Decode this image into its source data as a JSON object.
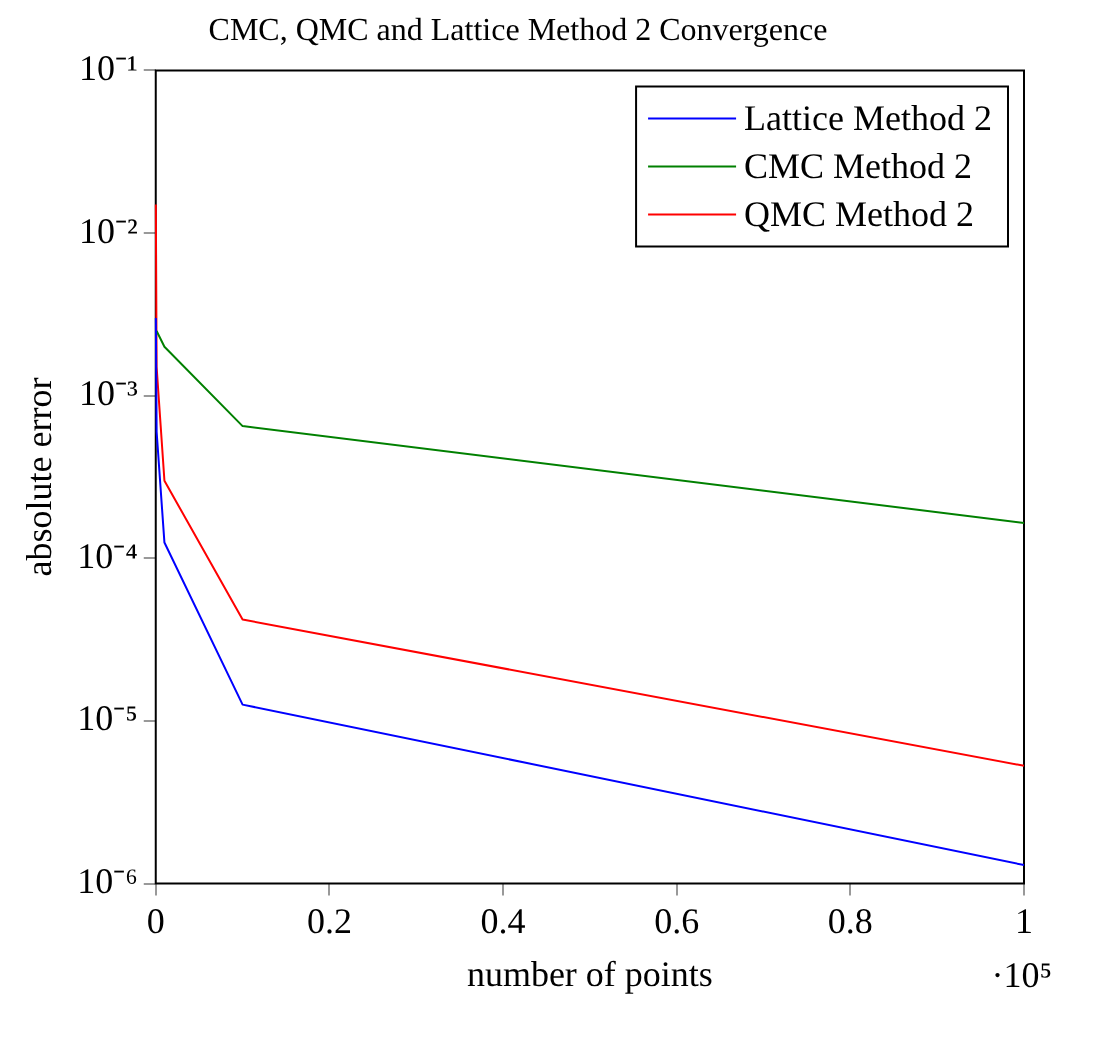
{
  "chart_data": {
    "type": "line",
    "title": "CMC, QMC and Lattice Method 2 Convergence",
    "xlabel": "number of points",
    "ylabel": "absolute error",
    "x": [
      0.0001,
      0.001,
      0.01,
      0.1,
      1
    ],
    "series": [
      {
        "name": "Lattice Method 2",
        "color": "#0000ff",
        "values": [
          0.003,
          0.0006,
          0.000125,
          1.26e-05,
          1.3e-06
        ]
      },
      {
        "name": "CMC Method 2",
        "color": "#008000",
        "values": [
          null,
          0.0025,
          0.002,
          0.00065,
          0.000165
        ]
      },
      {
        "name": "QMC Method 2",
        "color": "#ff0000",
        "values": [
          0.015,
          0.0015,
          0.0003,
          4.2e-05,
          5.3e-06
        ]
      }
    ],
    "xlim": [
      0,
      1
    ],
    "xticks": [
      0,
      0.2,
      0.4,
      0.6,
      0.8,
      1
    ],
    "ylim": [
      1e-06,
      0.1
    ],
    "yticks": [
      {
        "value": 1e-06,
        "label": "10⁻⁶"
      },
      {
        "value": 1e-05,
        "label": "10⁻⁵"
      },
      {
        "value": 0.0001,
        "label": "10⁻⁴"
      },
      {
        "value": 0.001,
        "label": "10⁻³"
      },
      {
        "value": 0.01,
        "label": "10⁻²"
      },
      {
        "value": 0.1,
        "label": "10⁻¹"
      }
    ],
    "log": "y",
    "grid": false,
    "legend": "top right",
    "marker": "none",
    "line_style": "solid",
    "annotations": [
      "·10⁵"
    ]
  }
}
